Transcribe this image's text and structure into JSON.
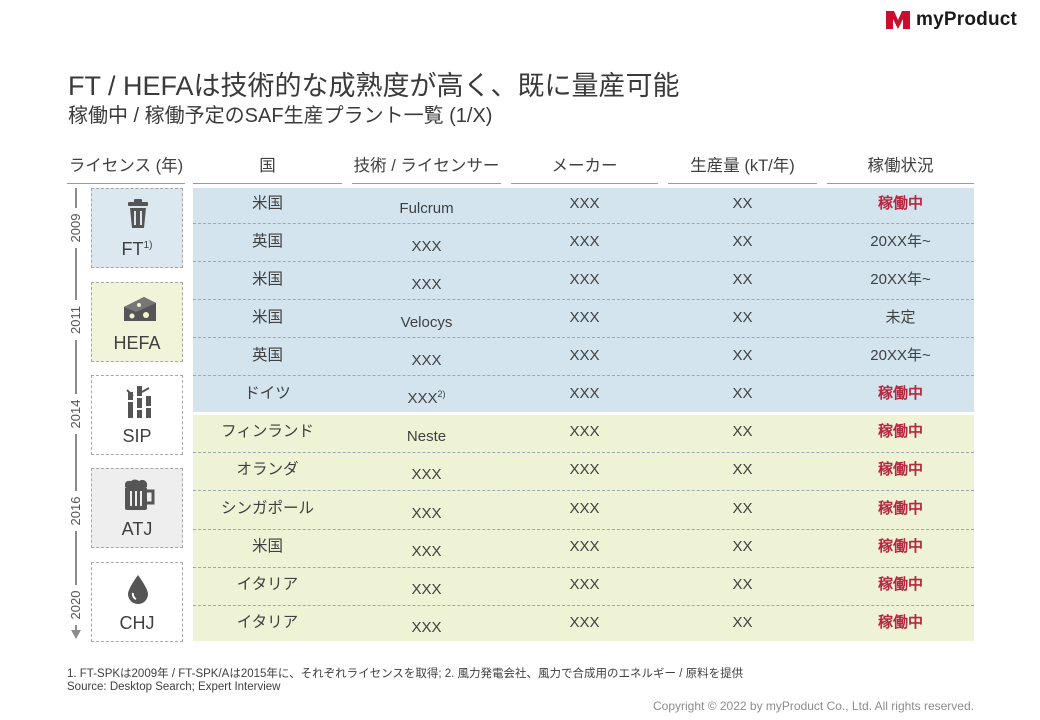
{
  "brand": {
    "name": "myProduct",
    "color": "#c8102e"
  },
  "title": "FT / HEFAは技術的な成熟度が高く、既に量産可能",
  "subtitle": "稼働中 / 稼働予定のSAF生産プラント一覧 (1/X)",
  "columns": {
    "license": "ライセンス (年)",
    "country": "国",
    "tech": "技術 / ライセンサー",
    "maker": "メーカー",
    "capacity": "生産量 (kT/年)",
    "status": "稼働状況"
  },
  "timeline": {
    "years": [
      "2009",
      "2011",
      "2014",
      "2016",
      "2020"
    ],
    "licenses": [
      {
        "label": "FT",
        "sup": "1)",
        "icon": "trash-can-icon"
      },
      {
        "label": "HEFA",
        "sup": "",
        "icon": "cheese-icon"
      },
      {
        "label": "SIP",
        "sup": "",
        "icon": "sugarcane-icon"
      },
      {
        "label": "ATJ",
        "sup": "",
        "icon": "beer-mug-icon"
      },
      {
        "label": "CHJ",
        "sup": "",
        "icon": "water-drop-icon"
      }
    ]
  },
  "rows": [
    {
      "country": "米国",
      "tech": "Fulcrum",
      "tech_sup": "",
      "maker": "XXX",
      "capacity": "XX",
      "status": "稼働中"
    },
    {
      "country": "英国",
      "tech": "XXX",
      "tech_sup": "",
      "maker": "XXX",
      "capacity": "XX",
      "status": "20XX年~"
    },
    {
      "country": "米国",
      "tech": "XXX",
      "tech_sup": "",
      "maker": "XXX",
      "capacity": "XX",
      "status": "20XX年~"
    },
    {
      "country": "米国",
      "tech": "Velocys",
      "tech_sup": "",
      "maker": "XXX",
      "capacity": "XX",
      "status": "未定"
    },
    {
      "country": "英国",
      "tech": "XXX",
      "tech_sup": "",
      "maker": "XXX",
      "capacity": "XX",
      "status": "20XX年~"
    },
    {
      "country": "ドイツ",
      "tech": "XXX",
      "tech_sup": "2)",
      "maker": "XXX",
      "capacity": "XX",
      "status": "稼働中"
    },
    {
      "country": "フィンランド",
      "tech": "Neste",
      "tech_sup": "",
      "maker": "XXX",
      "capacity": "XX",
      "status": "稼働中"
    },
    {
      "country": "オランダ",
      "tech": "XXX",
      "tech_sup": "",
      "maker": "XXX",
      "capacity": "XX",
      "status": "稼働中"
    },
    {
      "country": "シンガポール",
      "tech": "XXX",
      "tech_sup": "",
      "maker": "XXX",
      "capacity": "XX",
      "status": "稼働中"
    },
    {
      "country": "米国",
      "tech": "XXX",
      "tech_sup": "",
      "maker": "XXX",
      "capacity": "XX",
      "status": "稼働中"
    },
    {
      "country": "イタリア",
      "tech": "XXX",
      "tech_sup": "",
      "maker": "XXX",
      "capacity": "XX",
      "status": "稼働中"
    },
    {
      "country": "イタリア",
      "tech": "XXX",
      "tech_sup": "",
      "maker": "XXX",
      "capacity": "XX",
      "status": "稼働中"
    }
  ],
  "colors": {
    "ft_band": "#d4e4ee",
    "hefa_band": "#eef3d6",
    "active_status": "#b5283f",
    "ft_box": "#dce8ef",
    "hefa_box": "#f1f4d8",
    "atj_box": "#eeeeee"
  },
  "footnote": "1. FT-SPKは2009年 / FT-SPK/Aは2015年に、それぞれライセンスを取得; 2. 風力発電会社、風力で合成用のエネルギー / 原料を提供",
  "source": "Source: Desktop Search; Expert Interview",
  "copyright": "Copyright © 2022 by myProduct Co., Ltd.  All rights reserved."
}
